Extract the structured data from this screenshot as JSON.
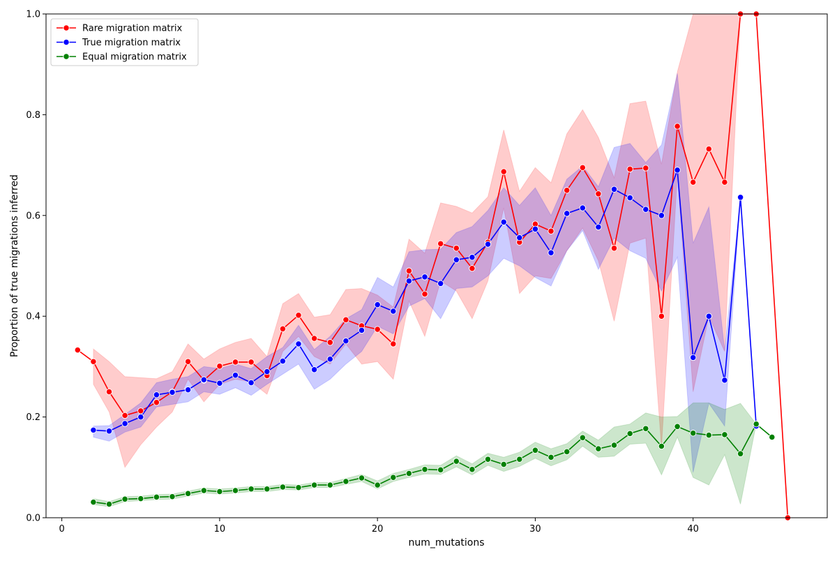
{
  "chart_data": {
    "type": "line",
    "title": "",
    "xlabel": "num_mutations",
    "ylabel": "Proportion of true migrations inferred",
    "xlim": [
      -1,
      48.5
    ],
    "ylim": [
      0.0,
      1.0
    ],
    "xticks": [
      0,
      10,
      20,
      30,
      40
    ],
    "xtick_labels": [
      "0",
      "10",
      "20",
      "30",
      "40"
    ],
    "yticks": [
      0.0,
      0.2,
      0.4,
      0.6,
      0.8,
      1.0
    ],
    "ytick_labels": [
      "0.0",
      "0.2",
      "0.4",
      "0.6",
      "0.8",
      "1.0"
    ],
    "grid": false,
    "legend_position": "top-left",
    "series": [
      {
        "name": "Rare migration matrix",
        "color": "#ff0000",
        "band_color": "#ff0000",
        "x": [
          1,
          2,
          3,
          4,
          5,
          6,
          7,
          8,
          9,
          10,
          11,
          12,
          13,
          14,
          15,
          16,
          17,
          18,
          19,
          20,
          21,
          22,
          23,
          24,
          25,
          26,
          27,
          28,
          29,
          30,
          31,
          32,
          33,
          34,
          35,
          36,
          37,
          38,
          39,
          40,
          41,
          42,
          43,
          44,
          46
        ],
        "y": [
          0.333,
          0.31,
          0.25,
          0.203,
          0.212,
          0.229,
          0.25,
          0.31,
          0.273,
          0.301,
          0.309,
          0.309,
          0.282,
          0.375,
          0.402,
          0.356,
          0.348,
          0.393,
          0.381,
          0.374,
          0.345,
          0.49,
          0.444,
          0.544,
          0.535,
          0.495,
          0.547,
          0.687,
          0.547,
          0.583,
          0.569,
          0.65,
          0.695,
          0.643,
          0.535,
          0.692,
          0.694,
          0.4,
          0.777,
          0.666,
          0.732,
          0.666,
          1.0,
          1.0,
          0.0
        ],
        "ci_lower": [
          null,
          0.265,
          0.21,
          0.1,
          0.145,
          0.18,
          0.21,
          0.275,
          0.23,
          0.265,
          0.275,
          0.27,
          0.245,
          0.33,
          0.36,
          0.32,
          0.305,
          0.345,
          0.305,
          0.31,
          0.275,
          0.43,
          0.36,
          0.47,
          0.45,
          0.395,
          0.47,
          0.615,
          0.445,
          0.48,
          0.475,
          0.53,
          0.575,
          0.51,
          0.39,
          0.545,
          0.555,
          0.14,
          0.68,
          0.25,
          0.4,
          0.33,
          1.0,
          1.0,
          null
        ],
        "ci_upper": [
          null,
          0.335,
          0.31,
          0.28,
          0.278,
          0.276,
          0.29,
          0.345,
          0.315,
          0.335,
          0.348,
          0.356,
          0.32,
          0.425,
          0.445,
          0.398,
          0.403,
          0.453,
          0.455,
          0.442,
          0.418,
          0.553,
          0.525,
          0.625,
          0.618,
          0.605,
          0.637,
          0.77,
          0.648,
          0.695,
          0.665,
          0.762,
          0.81,
          0.755,
          0.675,
          0.822,
          0.827,
          0.702,
          0.885,
          1.0,
          1.0,
          1.0,
          1.0,
          1.0,
          null
        ]
      },
      {
        "name": "True migration matrix",
        "color": "#0000ff",
        "band_color": "#0000ff",
        "x": [
          2,
          3,
          4,
          5,
          6,
          7,
          8,
          9,
          10,
          11,
          12,
          13,
          14,
          15,
          16,
          17,
          18,
          19,
          20,
          21,
          22,
          23,
          24,
          25,
          26,
          27,
          28,
          29,
          30,
          31,
          32,
          33,
          34,
          35,
          36,
          37,
          38,
          39,
          40,
          41,
          42,
          43,
          44
        ],
        "y": [
          0.174,
          0.172,
          0.187,
          0.2,
          0.244,
          0.249,
          0.254,
          0.274,
          0.267,
          0.283,
          0.268,
          0.29,
          0.311,
          0.345,
          0.294,
          0.315,
          0.351,
          0.372,
          0.423,
          0.41,
          0.47,
          0.478,
          0.465,
          0.512,
          0.517,
          0.543,
          0.587,
          0.556,
          0.573,
          0.526,
          0.604,
          0.615,
          0.577,
          0.652,
          0.635,
          0.612,
          0.6,
          0.69,
          0.318,
          0.4,
          0.273,
          0.636,
          0.182
        ],
        "ci_lower": [
          0.16,
          0.152,
          0.17,
          0.18,
          0.22,
          0.225,
          0.23,
          0.25,
          0.245,
          0.258,
          0.243,
          0.265,
          0.285,
          0.305,
          0.255,
          0.275,
          0.305,
          0.33,
          0.38,
          0.365,
          0.42,
          0.435,
          0.395,
          0.455,
          0.458,
          0.48,
          0.515,
          0.5,
          0.477,
          0.46,
          0.53,
          0.57,
          0.493,
          0.555,
          0.53,
          0.515,
          0.45,
          0.517,
          0.09,
          0.227,
          0.182,
          0.636,
          0.182
        ],
        "ci_upper": [
          0.182,
          0.183,
          0.205,
          0.228,
          0.268,
          0.275,
          0.28,
          0.3,
          0.296,
          0.305,
          0.296,
          0.32,
          0.338,
          0.382,
          0.334,
          0.36,
          0.395,
          0.413,
          0.477,
          0.458,
          0.528,
          0.532,
          0.533,
          0.566,
          0.578,
          0.61,
          0.655,
          0.62,
          0.655,
          0.6,
          0.672,
          0.698,
          0.657,
          0.735,
          0.743,
          0.705,
          0.74,
          0.882,
          0.545,
          0.617,
          0.333,
          0.636,
          0.182
        ]
      },
      {
        "name": "Equal migration matrix",
        "color": "#008000",
        "band_color": "#008000",
        "x": [
          2,
          3,
          4,
          5,
          6,
          7,
          8,
          9,
          10,
          11,
          12,
          13,
          14,
          15,
          16,
          17,
          18,
          19,
          20,
          21,
          22,
          23,
          24,
          25,
          26,
          27,
          28,
          29,
          30,
          31,
          32,
          33,
          34,
          35,
          36,
          37,
          38,
          39,
          40,
          41,
          42,
          43,
          44,
          45
        ],
        "y": [
          0.031,
          0.027,
          0.037,
          0.038,
          0.041,
          0.042,
          0.048,
          0.054,
          0.052,
          0.054,
          0.057,
          0.057,
          0.061,
          0.06,
          0.065,
          0.065,
          0.072,
          0.079,
          0.065,
          0.08,
          0.088,
          0.096,
          0.095,
          0.112,
          0.096,
          0.116,
          0.106,
          0.116,
          0.134,
          0.12,
          0.131,
          0.159,
          0.137,
          0.144,
          0.167,
          0.177,
          0.142,
          0.181,
          0.168,
          0.164,
          0.165,
          0.127,
          0.186,
          0.16
        ],
        "ci_lower": [
          0.026,
          0.022,
          0.032,
          0.034,
          0.036,
          0.037,
          0.043,
          0.049,
          0.047,
          0.049,
          0.052,
          0.052,
          0.056,
          0.055,
          0.06,
          0.06,
          0.066,
          0.072,
          0.057,
          0.072,
          0.08,
          0.087,
          0.086,
          0.101,
          0.085,
          0.104,
          0.092,
          0.102,
          0.118,
          0.103,
          0.115,
          0.142,
          0.12,
          0.122,
          0.146,
          0.148,
          0.085,
          0.16,
          0.08,
          0.065,
          0.125,
          0.027,
          0.186,
          0.16
        ],
        "ci_upper": [
          0.038,
          0.032,
          0.042,
          0.043,
          0.046,
          0.047,
          0.053,
          0.059,
          0.057,
          0.059,
          0.062,
          0.062,
          0.066,
          0.065,
          0.07,
          0.07,
          0.078,
          0.086,
          0.073,
          0.088,
          0.096,
          0.105,
          0.104,
          0.123,
          0.107,
          0.128,
          0.12,
          0.13,
          0.15,
          0.137,
          0.147,
          0.172,
          0.154,
          0.18,
          0.186,
          0.208,
          0.2,
          0.201,
          0.228,
          0.228,
          0.215,
          0.227,
          0.186,
          0.16
        ]
      }
    ]
  }
}
